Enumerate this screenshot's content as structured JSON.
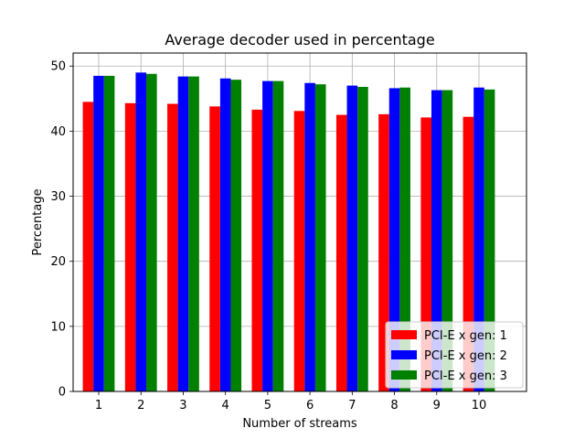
{
  "chart_data": {
    "type": "bar",
    "title": "Average decoder used in percentage",
    "xlabel": "Number of streams",
    "ylabel": "Percentage",
    "categories": [
      "1",
      "2",
      "3",
      "4",
      "5",
      "6",
      "7",
      "8",
      "9",
      "10"
    ],
    "ylim": [
      0,
      52
    ],
    "yticks": [
      "0",
      "10",
      "20",
      "30",
      "40",
      "50"
    ],
    "grid": true,
    "legend_position": "bottom-right",
    "series": [
      {
        "name": "PCI-E x gen: 1",
        "color": "#ff0000",
        "values": [
          44.5,
          44.3,
          44.2,
          43.8,
          43.3,
          43.1,
          42.5,
          42.6,
          42.1,
          42.2
        ]
      },
      {
        "name": "PCI-E x gen: 2",
        "color": "#0000ff",
        "values": [
          48.5,
          49.0,
          48.4,
          48.1,
          47.7,
          47.4,
          47.0,
          46.6,
          46.3,
          46.7
        ]
      },
      {
        "name": "PCI-E x gen: 3",
        "color": "#008000",
        "values": [
          48.5,
          48.8,
          48.4,
          47.9,
          47.7,
          47.2,
          46.8,
          46.7,
          46.3,
          46.4
        ]
      }
    ]
  }
}
